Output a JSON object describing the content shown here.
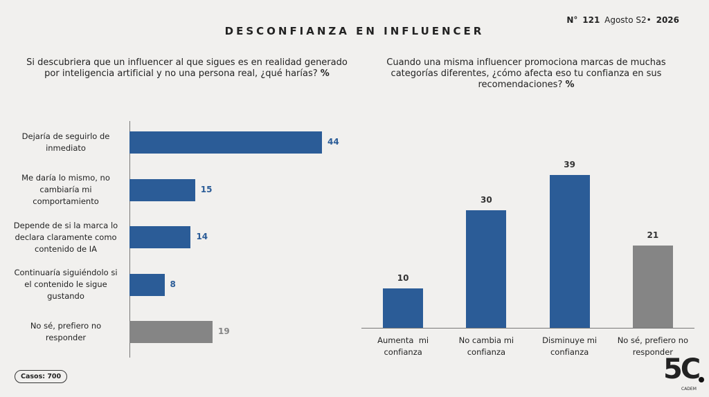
{
  "header": {
    "title": "DESCONFIANZA EN INFLUENCER",
    "issue": [
      "N°",
      "121",
      "Agosto S2•",
      "2026"
    ]
  },
  "chart_data": [
    {
      "type": "hbar",
      "title": "Si descubriera que un influencer al que sigues es en realidad generado por inteligencia artificial y no una persona real, ¿qué harías?",
      "unit_label": "%",
      "categories": [
        "Dejaría de seguirlo de inmediato",
        "Me daría lo mismo, no cambiaría mi comportamiento",
        "Depende de si la marca lo declara claramente como contenido de IA",
        "Continuaría siguiéndolo si el contenido le sigue gustando",
        "No sé, prefiero no responder"
      ],
      "values": [
        44,
        15,
        14,
        8,
        19
      ],
      "colors": [
        "#2b5c97",
        "#2b5c97",
        "#2b5c97",
        "#2b5c97",
        "#858585"
      ]
    },
    {
      "type": "bar",
      "title": "Cuando una misma influencer promociona marcas de muchas categorías diferentes, ¿cómo afecta eso tu confianza en sus recomendaciones?",
      "unit_label": "%",
      "categories": [
        "Aumenta  mi confianza",
        "No cambia mi confianza",
        "Disminuye mi confianza",
        "No sé, prefiero no responder"
      ],
      "values": [
        10,
        30,
        39,
        21
      ],
      "colors": [
        "#2b5c97",
        "#2b5c97",
        "#2b5c97",
        "#858585"
      ]
    }
  ],
  "footer": {
    "cases": "Casos: 700",
    "logo": "5C",
    "logo_sub": "CADEM"
  }
}
